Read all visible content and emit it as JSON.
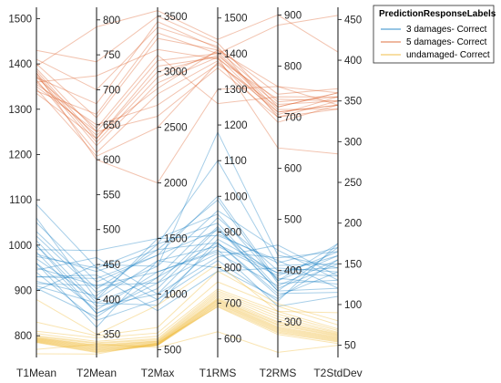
{
  "chart_data": {
    "type": "parallel-coordinates",
    "title": "",
    "axes": [
      {
        "label": "T1Mean",
        "ylim": [
          752,
          1525
        ],
        "ticks": [
          800,
          900,
          1000,
          1100,
          1200,
          1300,
          1400,
          1500
        ]
      },
      {
        "label": "T2Mean",
        "ylim": [
          317,
          818
        ],
        "ticks": [
          350,
          400,
          450,
          500,
          550,
          600,
          650,
          700,
          750,
          800
        ]
      },
      {
        "label": "T2Max",
        "ylim": [
          430,
          3580
        ],
        "ticks": [
          500,
          1000,
          1500,
          2000,
          2500,
          3000,
          3500
        ]
      },
      {
        "label": "T1RMS",
        "ylim": [
          548,
          1530
        ],
        "ticks": [
          600,
          700,
          800,
          900,
          1000,
          1100,
          1200,
          1300,
          1400,
          1500
        ]
      },
      {
        "label": "T2RMS",
        "ylim": [
          230,
          915
        ],
        "ticks": [
          300,
          400,
          500,
          600,
          700,
          800,
          900
        ]
      },
      {
        "label": "T2StdDev",
        "ylim": [
          35,
          465
        ],
        "ticks": [
          50,
          100,
          150,
          200,
          250,
          300,
          350,
          400,
          450
        ]
      }
    ],
    "legend": {
      "title": "PredictionResponseLabels",
      "placement": "top-right",
      "entries": [
        {
          "label": "3 damages- Correct",
          "color": "#0072BD"
        },
        {
          "label": "5 damages- Correct",
          "color": "#D95319"
        },
        {
          "label": "undamaged- Correct",
          "color": "#EDB120"
        }
      ]
    },
    "series": [
      {
        "name": "3 damages- Correct",
        "color": "#0072BD",
        "lines": [
          [
            1090,
            445,
            1450,
            1100,
            410,
            150
          ],
          [
            1050,
            425,
            1350,
            1000,
            380,
            160
          ],
          [
            1020,
            410,
            1250,
            960,
            440,
            130
          ],
          [
            1010,
            395,
            1150,
            940,
            400,
            145
          ],
          [
            1000,
            380,
            1050,
            910,
            360,
            170
          ],
          [
            990,
            470,
            1500,
            890,
            420,
            120
          ],
          [
            980,
            440,
            1400,
            870,
            350,
            140
          ],
          [
            970,
            400,
            1300,
            860,
            390,
            165
          ],
          [
            960,
            385,
            1200,
            850,
            330,
            110
          ],
          [
            950,
            420,
            1100,
            840,
            370,
            155
          ],
          [
            945,
            460,
            1000,
            830,
            450,
            135
          ],
          [
            940,
            370,
            950,
            820,
            340,
            175
          ],
          [
            930,
            430,
            1350,
            905,
            385,
            125
          ],
          [
            920,
            405,
            1450,
            925,
            365,
            150
          ],
          [
            910,
            395,
            900,
            880,
            395,
            160
          ],
          [
            905,
            375,
            1150,
            870,
            355,
            115
          ],
          [
            900,
            450,
            1250,
            1180,
            430,
            145
          ],
          [
            1000,
            390,
            1000,
            895,
            415,
            170
          ],
          [
            1030,
            415,
            1400,
            990,
            375,
            130
          ],
          [
            960,
            360,
            1300,
            800,
            345,
            155
          ],
          [
            930,
            435,
            850,
            790,
            405,
            140
          ],
          [
            1060,
            400,
            1500,
            950,
            380,
            175
          ],
          [
            985,
            380,
            1100,
            915,
            360,
            120
          ],
          [
            915,
            420,
            1200,
            845,
            425,
            165
          ],
          [
            975,
            445,
            950,
            865,
            395,
            135
          ]
        ]
      },
      {
        "name": "5 damages- Correct",
        "color": "#D95319",
        "lines": [
          [
            1430,
            740,
            3500,
            1430,
            720,
            360
          ],
          [
            1410,
            700,
            3400,
            1420,
            700,
            350
          ],
          [
            1400,
            660,
            3300,
            1410,
            730,
            355
          ],
          [
            1390,
            640,
            3100,
            1400,
            710,
            345
          ],
          [
            1385,
            630,
            3000,
            1395,
            725,
            350
          ],
          [
            1380,
            625,
            2950,
            1405,
            715,
            340
          ],
          [
            1375,
            620,
            2900,
            1390,
            705,
            355
          ],
          [
            1370,
            680,
            3450,
            1415,
            745,
            365
          ],
          [
            1365,
            610,
            2800,
            1380,
            690,
            345
          ],
          [
            1360,
            720,
            3200,
            1385,
            735,
            350
          ],
          [
            1355,
            650,
            2700,
            1370,
            720,
            360
          ],
          [
            1350,
            640,
            2600,
            1360,
            700,
            340
          ],
          [
            1345,
            605,
            2500,
            1375,
            710,
            345
          ],
          [
            1340,
            665,
            3350,
            1400,
            880,
            455
          ],
          [
            1335,
            630,
            3050,
            1390,
            640,
            285
          ],
          [
            1395,
            790,
            3550,
            1440,
            900,
            410
          ],
          [
            1380,
            600,
            2000,
            1300,
            760,
            360
          ],
          [
            1370,
            645,
            3150,
            1260,
            740,
            355
          ],
          [
            1360,
            635,
            2850,
            1410,
            760,
            345
          ]
        ]
      },
      {
        "name": "undamaged- Correct",
        "color": "#EDB120",
        "lines": [
          [
            810,
            345,
            650,
            760,
            330,
            75
          ],
          [
            805,
            340,
            620,
            740,
            320,
            70
          ],
          [
            800,
            338,
            600,
            735,
            315,
            68
          ],
          [
            798,
            337,
            590,
            730,
            310,
            66
          ],
          [
            796,
            335,
            580,
            725,
            305,
            65
          ],
          [
            795,
            334,
            575,
            720,
            300,
            64
          ],
          [
            794,
            333,
            570,
            715,
            298,
            63
          ],
          [
            793,
            332,
            565,
            712,
            295,
            62
          ],
          [
            792,
            331,
            560,
            710,
            293,
            61
          ],
          [
            791,
            330,
            555,
            708,
            290,
            60
          ],
          [
            790,
            329,
            550,
            705,
            288,
            59
          ],
          [
            789,
            328,
            548,
            703,
            286,
            58
          ],
          [
            788,
            327,
            545,
            700,
            284,
            57
          ],
          [
            787,
            326,
            542,
            698,
            282,
            56
          ],
          [
            786,
            325,
            540,
            695,
            280,
            55
          ],
          [
            785,
            324,
            538,
            692,
            278,
            54
          ],
          [
            830,
            348,
            700,
            790,
            335,
            80
          ],
          [
            760,
            322,
            560,
            690,
            275,
            52
          ],
          [
            880,
            350,
            900,
            810,
            320,
            90
          ],
          [
            770,
            336,
            520,
            620,
            240,
            50
          ]
        ]
      }
    ]
  }
}
